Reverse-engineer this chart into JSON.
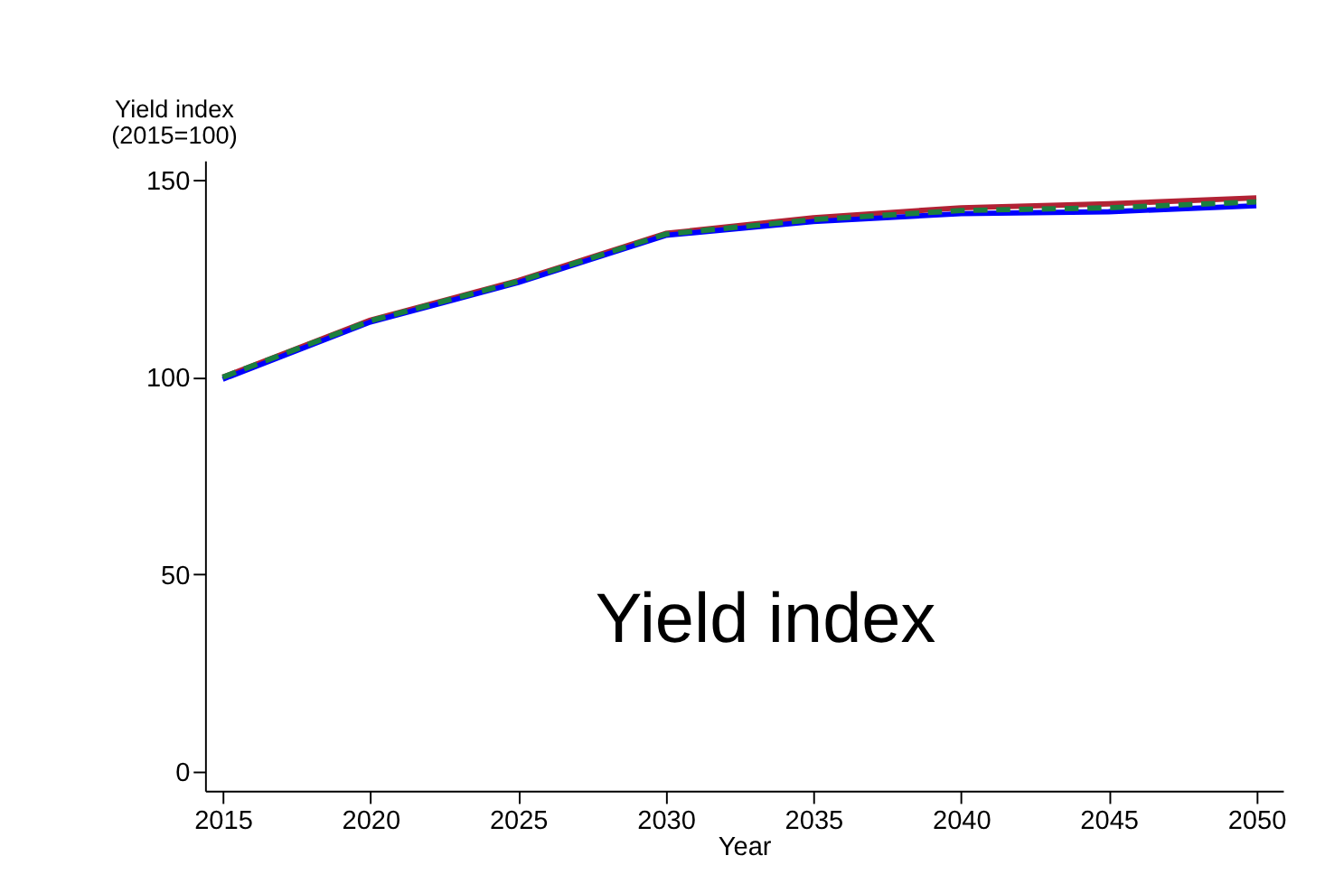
{
  "chart_data": {
    "type": "line",
    "xlabel": "Year",
    "ylabel": "Yield index\n(2015=100)",
    "x": [
      2015,
      2020,
      2025,
      2030,
      2035,
      2040,
      2045,
      2050
    ],
    "series": [
      {
        "color": "#b22234",
        "values": [
          100,
          114.5,
          124.5,
          136.5,
          140.5,
          143,
          144,
          145.5
        ],
        "line_style": "solid"
      },
      {
        "color": "#0000ff",
        "values": [
          99.5,
          114,
          124,
          136,
          139.5,
          141.5,
          142,
          143.5
        ],
        "line_style": "solid"
      },
      {
        "color": "#1b7f3f",
        "values": [
          100,
          114.3,
          124.3,
          136.3,
          140,
          142.3,
          143,
          144.5
        ],
        "line_style": "dashed"
      }
    ],
    "xlim": [
      2014.4,
      2050.9
    ],
    "xticks": [
      2015,
      2020,
      2025,
      2030,
      2035,
      2040,
      2045,
      2050
    ],
    "ylim": [
      -5,
      155
    ],
    "yticks": [
      0,
      50,
      100,
      150
    ],
    "annotations": [
      "Yield index"
    ]
  }
}
